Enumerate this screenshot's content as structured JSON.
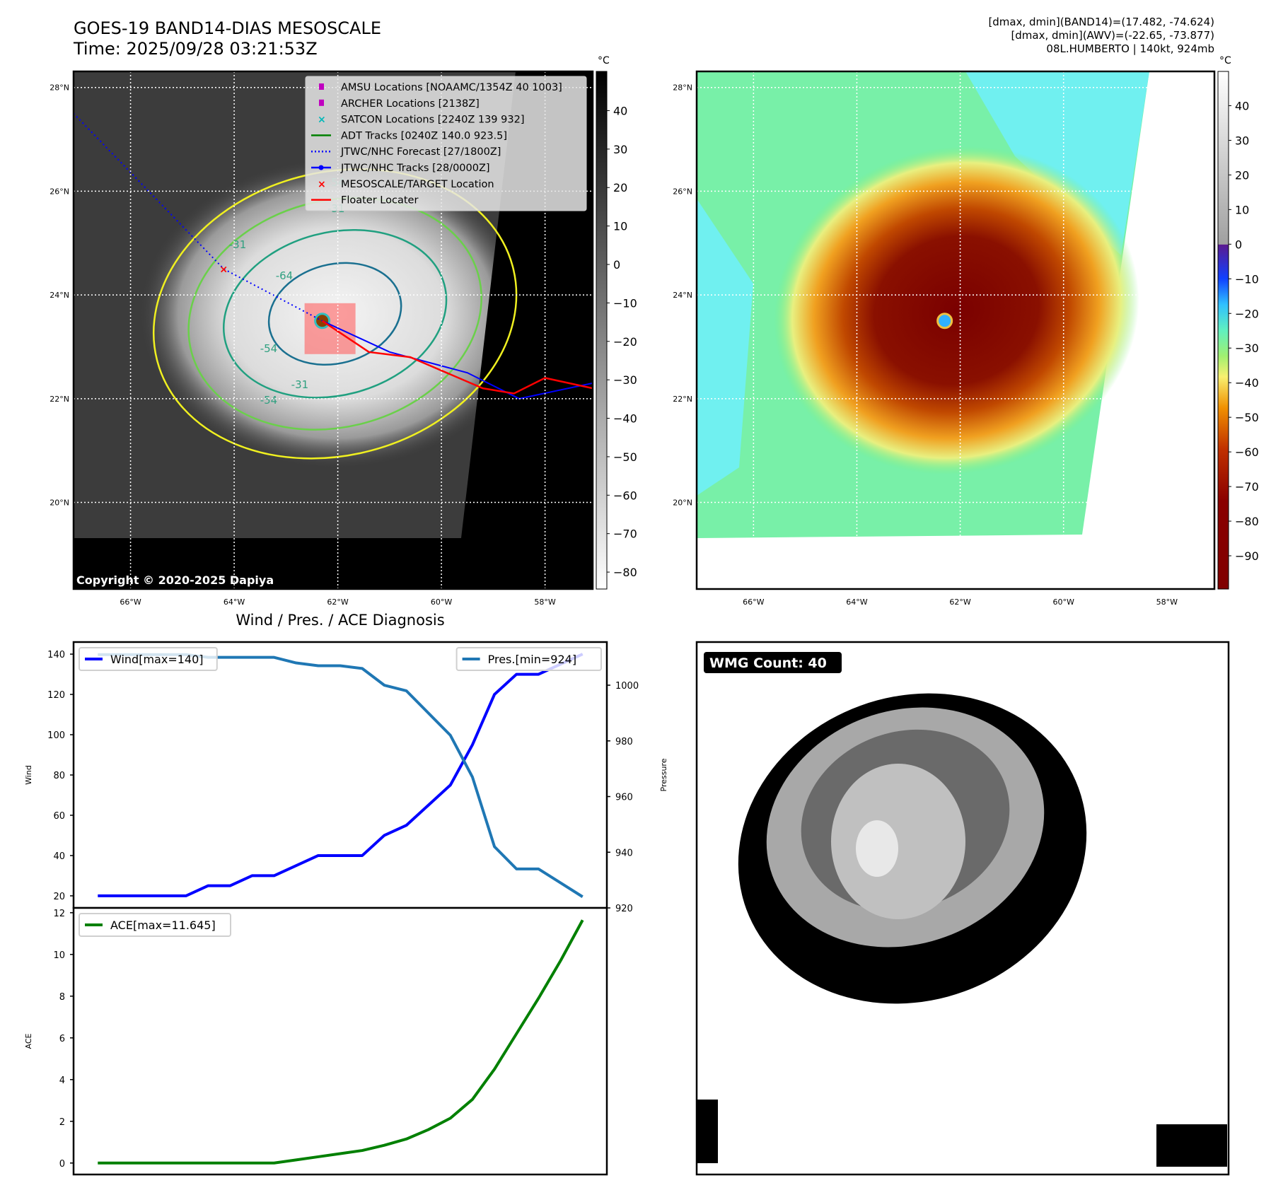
{
  "header": {
    "title_line1": "GOES-19 BAND14-DIAS MESOSCALE",
    "title_line2": "Time: 2025/09/28 03:21:53Z",
    "info_line1": "[dmax, dmin](BAND14)=(17.482, -74.624)",
    "info_line2": "[dmax, dmin](AWV)=(-22.65, -73.877)",
    "info_line3": "08L.HUMBERTO | 140kt, 924mb"
  },
  "maps": {
    "lat_ticks": [
      28,
      26,
      24,
      22,
      20
    ],
    "lon_ticks": [
      -66,
      -64,
      -62,
      -60,
      -58
    ],
    "lat_labels": [
      "28°N",
      "26°N",
      "24°N",
      "22°N",
      "20°N"
    ],
    "lon_labels": [
      "66°W",
      "64°W",
      "62°W",
      "60°W",
      "58°W"
    ],
    "lat_range": [
      18.33,
      28.31
    ],
    "lon_range": [
      -67.1,
      -57.08
    ],
    "storm_center": [
      -62.3,
      23.5
    ],
    "copyright": "Copyright © 2020-2025 Dapiya",
    "legend": [
      {
        "label": "AMSU Locations [NOAAMC/1354Z 40 1003]",
        "marker": "square",
        "color": "#c000c0"
      },
      {
        "label": "ARCHER Locations [2138Z]",
        "marker": "square",
        "color": "#c000c0"
      },
      {
        "label": "SATCON Locations [2240Z 139 932]",
        "marker": "x",
        "color": "#00b8b8"
      },
      {
        "label": "ADT Tracks [0240Z 140.0 923.5]",
        "marker": "line",
        "color": "#008000"
      },
      {
        "label": "JTWC/NHC Forecast [27/1800Z]",
        "marker": "dotted",
        "color": "#0000ff"
      },
      {
        "label": "JTWC/NHC Tracks [28/0000Z]",
        "marker": "line-dot",
        "color": "#0000ff"
      },
      {
        "label": "MESOSCALE/TARGET Location",
        "marker": "x",
        "color": "#ff0000"
      },
      {
        "label": "Floater Locater",
        "marker": "line",
        "color": "#ff0000"
      }
    ],
    "left_colorbar": {
      "unit": "°C",
      "ticks": [
        40,
        30,
        20,
        10,
        0,
        -10,
        -20,
        -30,
        -40,
        -50,
        -60,
        -70,
        -80
      ],
      "range": [
        50.2,
        -84.4
      ]
    },
    "right_colorbar": {
      "unit": "°C",
      "ticks": [
        40,
        30,
        20,
        10,
        0,
        -10,
        -20,
        -30,
        -40,
        -50,
        -60,
        -70,
        -80,
        -90
      ],
      "range": [
        49.9,
        -99.6
      ]
    },
    "contour_labels": [
      "-31",
      "-54",
      "-64",
      "-54",
      "-31",
      "-54",
      "-31"
    ]
  },
  "wmg": {
    "badge": "WMG Count: 40"
  },
  "chart_data": [
    {
      "type": "line",
      "title": "Wind / Pres. / ACE Diagnosis",
      "x": [
        0,
        1,
        2,
        3,
        4,
        5,
        6,
        7,
        8,
        9,
        10,
        11,
        12,
        13,
        14,
        15,
        16,
        17,
        18,
        19,
        20,
        21,
        22
      ],
      "xlim": [
        -1.1,
        23.1
      ],
      "ylabel": "Wind",
      "ylabel2": "Pressure",
      "ylim": [
        14,
        146
      ],
      "ylim2": [
        920,
        1015.5
      ],
      "yticks": [
        20,
        40,
        60,
        80,
        100,
        120,
        140
      ],
      "yticks2": [
        920,
        940,
        960,
        980,
        1000
      ],
      "series": [
        {
          "name": "Wind[max=140]",
          "axis": "left",
          "color": "#0000ff",
          "legend": "top-left",
          "values": [
            20,
            20,
            20,
            20,
            20,
            25,
            25,
            30,
            30,
            35,
            40,
            40,
            40,
            50,
            55,
            65,
            75,
            95,
            120,
            130,
            130,
            135,
            140
          ]
        },
        {
          "name": "Pres.[min=924]",
          "axis": "right",
          "color": "#1f77b4",
          "legend": "top-right",
          "values": [
            1011,
            1011,
            1011,
            1011,
            1011,
            1010,
            1010,
            1010,
            1010,
            1008,
            1007,
            1007,
            1006,
            1000,
            998,
            990,
            982,
            967,
            942,
            934,
            934,
            929,
            924
          ]
        }
      ]
    },
    {
      "type": "line",
      "ylabel": "ACE",
      "ylim": [
        -0.55,
        12.23
      ],
      "yticks": [
        0,
        2,
        4,
        6,
        8,
        10,
        12
      ],
      "series": [
        {
          "name": "ACE[max=11.645]",
          "color": "#008000",
          "legend": "top-left",
          "values": [
            0,
            0,
            0,
            0,
            0,
            0,
            0,
            0,
            0,
            0.15,
            0.3,
            0.45,
            0.6,
            0.85,
            1.15,
            1.6,
            2.15,
            3.05,
            4.5,
            6.2,
            7.9,
            9.7,
            11.645
          ]
        }
      ]
    }
  ]
}
